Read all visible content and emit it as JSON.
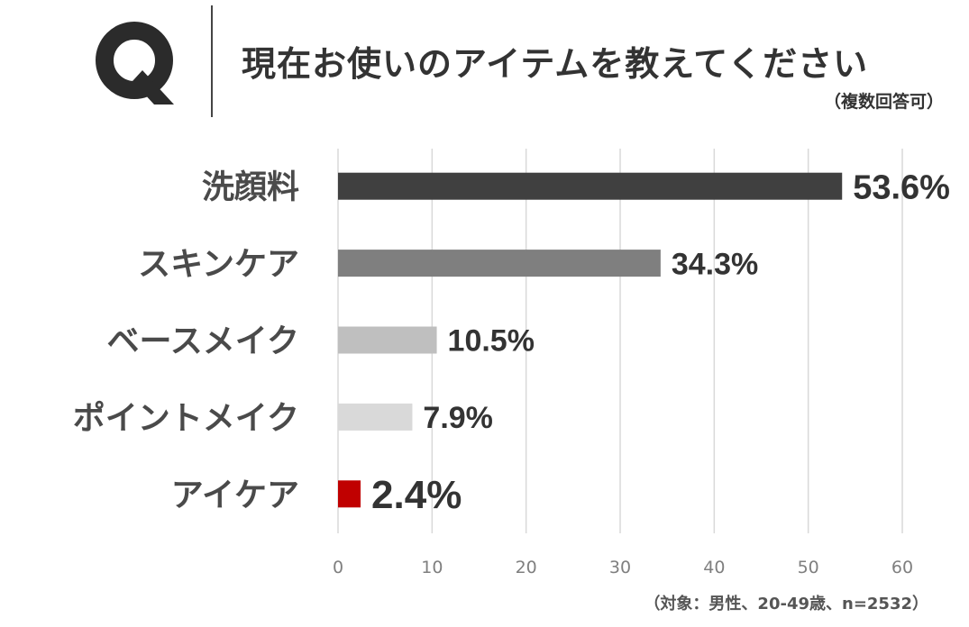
{
  "header": {
    "q_label": "Q",
    "question": "現在お使いのアイテムを教えてください",
    "note": "（複数回答可）"
  },
  "footnote": "（対象：男性、20-49歳、n=2532）",
  "chart_data": {
    "type": "bar",
    "orientation": "horizontal",
    "categories": [
      "洗顔料",
      "スキンケア",
      "ベースメイク",
      "ポイントメイク",
      "アイケア"
    ],
    "values": [
      53.6,
      34.3,
      10.5,
      7.9,
      2.4
    ],
    "value_labels": [
      "53.6%",
      "34.3%",
      "10.5%",
      "7.9%",
      "2.4%"
    ],
    "colors": [
      "#404040",
      "#7f7f7f",
      "#bfbfbf",
      "#d9d9d9",
      "#c00000"
    ],
    "label_colors": [
      "#333333",
      "#333333",
      "#333333",
      "#333333",
      "#333333"
    ],
    "xlim": [
      0,
      60
    ],
    "xticks": [
      0,
      10,
      20,
      30,
      40,
      50,
      60
    ],
    "grid": true,
    "legend": "none"
  }
}
